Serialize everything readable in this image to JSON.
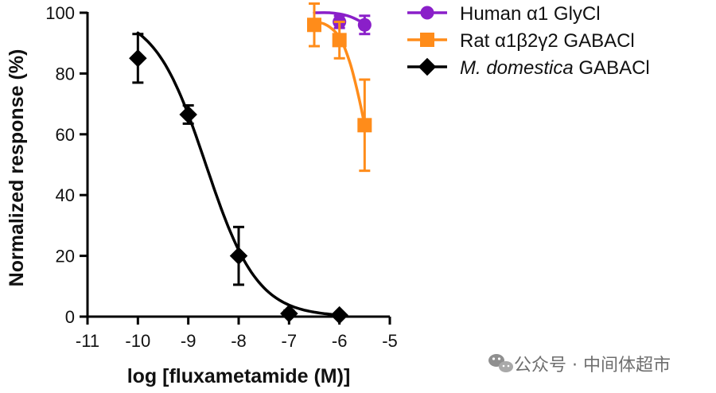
{
  "chart_data": {
    "type": "scatter",
    "xlabel": "log [fluxametamide (M)]",
    "ylabel": "Normalized response (%)",
    "xlim": [
      -11,
      -5
    ],
    "ylim": [
      0,
      100
    ],
    "x_ticks": [
      -11,
      -10,
      -9,
      -8,
      -7,
      -6,
      -5
    ],
    "x_tick_labels": [
      "-11",
      "-10",
      "-9",
      "-8",
      "-7",
      "-6",
      "-5"
    ],
    "y_ticks": [
      0,
      20,
      40,
      60,
      80,
      100
    ],
    "y_tick_labels": [
      "0",
      "20",
      "40",
      "60",
      "80",
      "100"
    ],
    "legend_position": "top-right",
    "series": [
      {
        "name": "Human α1 GlyCl",
        "name_parts": [
          {
            "text": "Human α1 GlyCl",
            "italic": false
          }
        ],
        "color": "#8a1fc9",
        "marker": "circle",
        "points": [
          {
            "x": -6,
            "y": 97,
            "err": 2
          },
          {
            "x": -5.5,
            "y": 96,
            "err": 3
          }
        ],
        "curve": {
          "type": "flat-decline",
          "x": [
            -6.5,
            -6.2,
            -6,
            -5.8,
            -5.6,
            -5.5
          ],
          "y": [
            100,
            100,
            99.6,
            98.8,
            97.3,
            96.2
          ]
        }
      },
      {
        "name": "Rat α1β2γ2 GABACl",
        "name_parts": [
          {
            "text": "Rat α1β2γ2 GABACl",
            "italic": false
          }
        ],
        "color": "#ff8c1a",
        "marker": "square",
        "points": [
          {
            "x": -6.5,
            "y": 96,
            "err": 7
          },
          {
            "x": -6,
            "y": 91,
            "err": 6
          },
          {
            "x": -5.5,
            "y": 63,
            "err": 15
          }
        ],
        "curve": {
          "type": "decline",
          "x": [
            -6.5,
            -6.3,
            -6.1,
            -5.95,
            -5.8,
            -5.7,
            -5.6,
            -5.5
          ],
          "y": [
            97,
            96.3,
            94,
            90.5,
            84,
            78,
            71,
            63
          ]
        }
      },
      {
        "name": "M. domestica GABACl",
        "name_parts": [
          {
            "text": "M. domestica",
            "italic": true
          },
          {
            "text": " GABACl",
            "italic": false
          }
        ],
        "color": "#000000",
        "marker": "diamond",
        "points": [
          {
            "x": -10,
            "y": 85,
            "err": 8
          },
          {
            "x": -9,
            "y": 66.5,
            "err": 3
          },
          {
            "x": -8,
            "y": 20,
            "err": 9.5
          },
          {
            "x": -7,
            "y": 1,
            "err": 1
          },
          {
            "x": -6,
            "y": 0.5,
            "err": 0.5
          }
        ],
        "curve": {
          "type": "hill",
          "bottom": 0,
          "top": 100,
          "log_ic50": -8.65,
          "hill_slope": -0.85,
          "x_range": [
            -10,
            -6
          ]
        }
      }
    ]
  },
  "watermark": {
    "icon": "wechat-icon",
    "text": "公众号 · 中间体超市"
  }
}
